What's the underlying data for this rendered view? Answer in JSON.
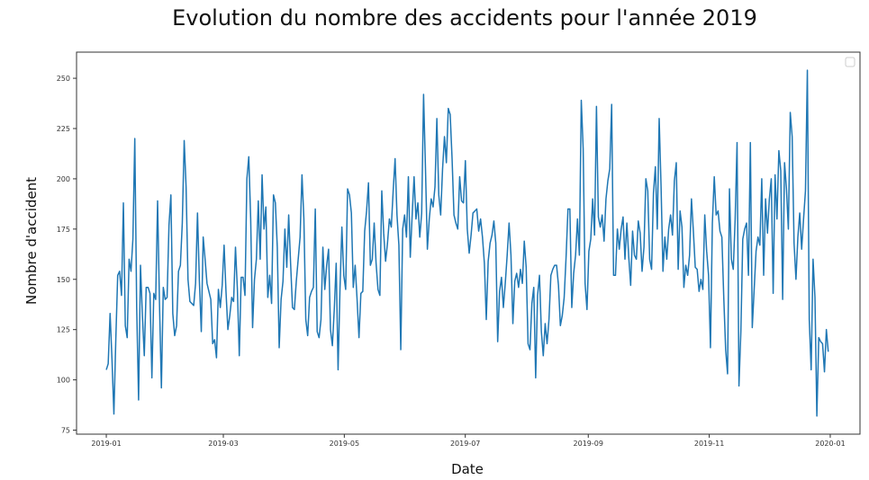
{
  "chart_data": {
    "type": "line",
    "title": "Evolution du nombre des accidents pour l'année 2019",
    "xlabel": "Date",
    "ylabel": "Nombre d'accident",
    "x_start": "2019-01-01",
    "x_end": "2019-12-31",
    "x_ticks": [
      "2019-01",
      "2019-03",
      "2019-05",
      "2019-07",
      "2019-09",
      "2019-11",
      "2020-01"
    ],
    "y_ticks": [
      75,
      100,
      125,
      150,
      175,
      200,
      225,
      250
    ],
    "ylim": [
      73,
      263
    ],
    "legend": "top-right (empty)",
    "grid": false,
    "line_color": "#1f77b4",
    "series": [
      {
        "values": [
          105,
          108,
          133,
          110,
          83,
          120,
          152,
          154,
          142,
          188,
          127,
          121,
          160,
          154,
          170,
          220,
          136,
          90,
          157,
          132,
          112,
          146,
          146,
          143,
          101,
          143,
          140,
          189,
          138,
          96,
          146,
          140,
          141,
          177,
          192,
          133,
          122,
          127,
          154,
          157,
          178,
          219,
          196,
          150,
          139,
          138,
          137,
          148,
          183,
          149,
          124,
          171,
          160,
          148,
          144,
          140,
          118,
          120,
          111,
          145,
          136,
          147,
          167,
          144,
          125,
          132,
          141,
          139,
          166,
          145,
          112,
          151,
          151,
          142,
          200,
          211,
          180,
          126,
          150,
          160,
          189,
          160,
          202,
          175,
          186,
          141,
          152,
          138,
          192,
          188,
          166,
          116,
          140,
          149,
          175,
          156,
          182,
          158,
          136,
          135,
          149,
          160,
          171,
          202,
          180,
          130,
          122,
          141,
          144,
          146,
          185,
          124,
          121,
          130,
          166,
          145,
          157,
          165,
          125,
          117,
          135,
          158,
          105,
          145,
          176,
          152,
          145,
          195,
          192,
          183,
          146,
          157,
          140,
          121,
          143,
          144,
          174,
          184,
          198,
          157,
          160,
          178,
          158,
          145,
          142,
          194,
          173,
          159,
          168,
          180,
          176,
          194,
          210,
          182,
          167,
          115,
          175,
          182,
          171,
          201,
          161,
          182,
          201,
          180,
          188,
          171,
          183,
          242,
          205,
          165,
          180,
          190,
          186,
          196,
          230,
          192,
          182,
          205,
          221,
          208,
          235,
          232,
          210,
          182,
          178,
          175,
          201,
          189,
          188,
          209,
          175,
          163,
          172,
          183,
          184,
          185,
          174,
          180,
          171,
          158,
          130,
          159,
          168,
          172,
          179,
          168,
          119,
          144,
          151,
          136,
          148,
          162,
          178,
          162,
          128,
          149,
          153,
          146,
          155,
          148,
          169,
          156,
          118,
          115,
          138,
          146,
          101,
          142,
          152,
          124,
          112,
          128,
          118,
          130,
          152,
          155,
          157,
          157,
          147,
          127,
          132,
          141,
          161,
          185,
          185,
          136,
          153,
          162,
          180,
          162,
          239,
          215,
          148,
          135,
          164,
          170,
          190,
          172,
          236,
          181,
          176,
          182,
          169,
          190,
          199,
          205,
          237,
          152,
          152,
          175,
          165,
          175,
          181,
          160,
          178,
          161,
          147,
          174,
          162,
          160,
          179,
          173,
          154,
          166,
          200,
          194,
          160,
          155,
          193,
          206,
          175,
          230,
          196,
          154,
          171,
          160,
          175,
          182,
          172,
          199,
          208,
          155,
          184,
          176,
          146,
          157,
          152,
          162,
          190,
          174,
          156,
          155,
          144,
          150,
          145,
          182,
          164,
          152,
          116,
          178,
          201,
          182,
          184,
          174,
          171,
          141,
          115,
          103,
          195,
          160,
          155,
          180,
          218,
          97,
          124,
          170,
          175,
          178,
          152,
          218,
          126,
          145,
          164,
          171,
          167,
          200,
          152,
          190,
          173,
          190,
          200,
          143,
          202,
          180,
          214,
          204,
          140,
          208,
          195,
          175,
          233,
          221,
          168,
          150,
          171,
          183,
          165,
          180,
          194,
          254,
          130,
          105,
          160,
          141,
          82,
          121,
          119,
          118,
          104,
          125,
          114
        ]
      }
    ]
  }
}
